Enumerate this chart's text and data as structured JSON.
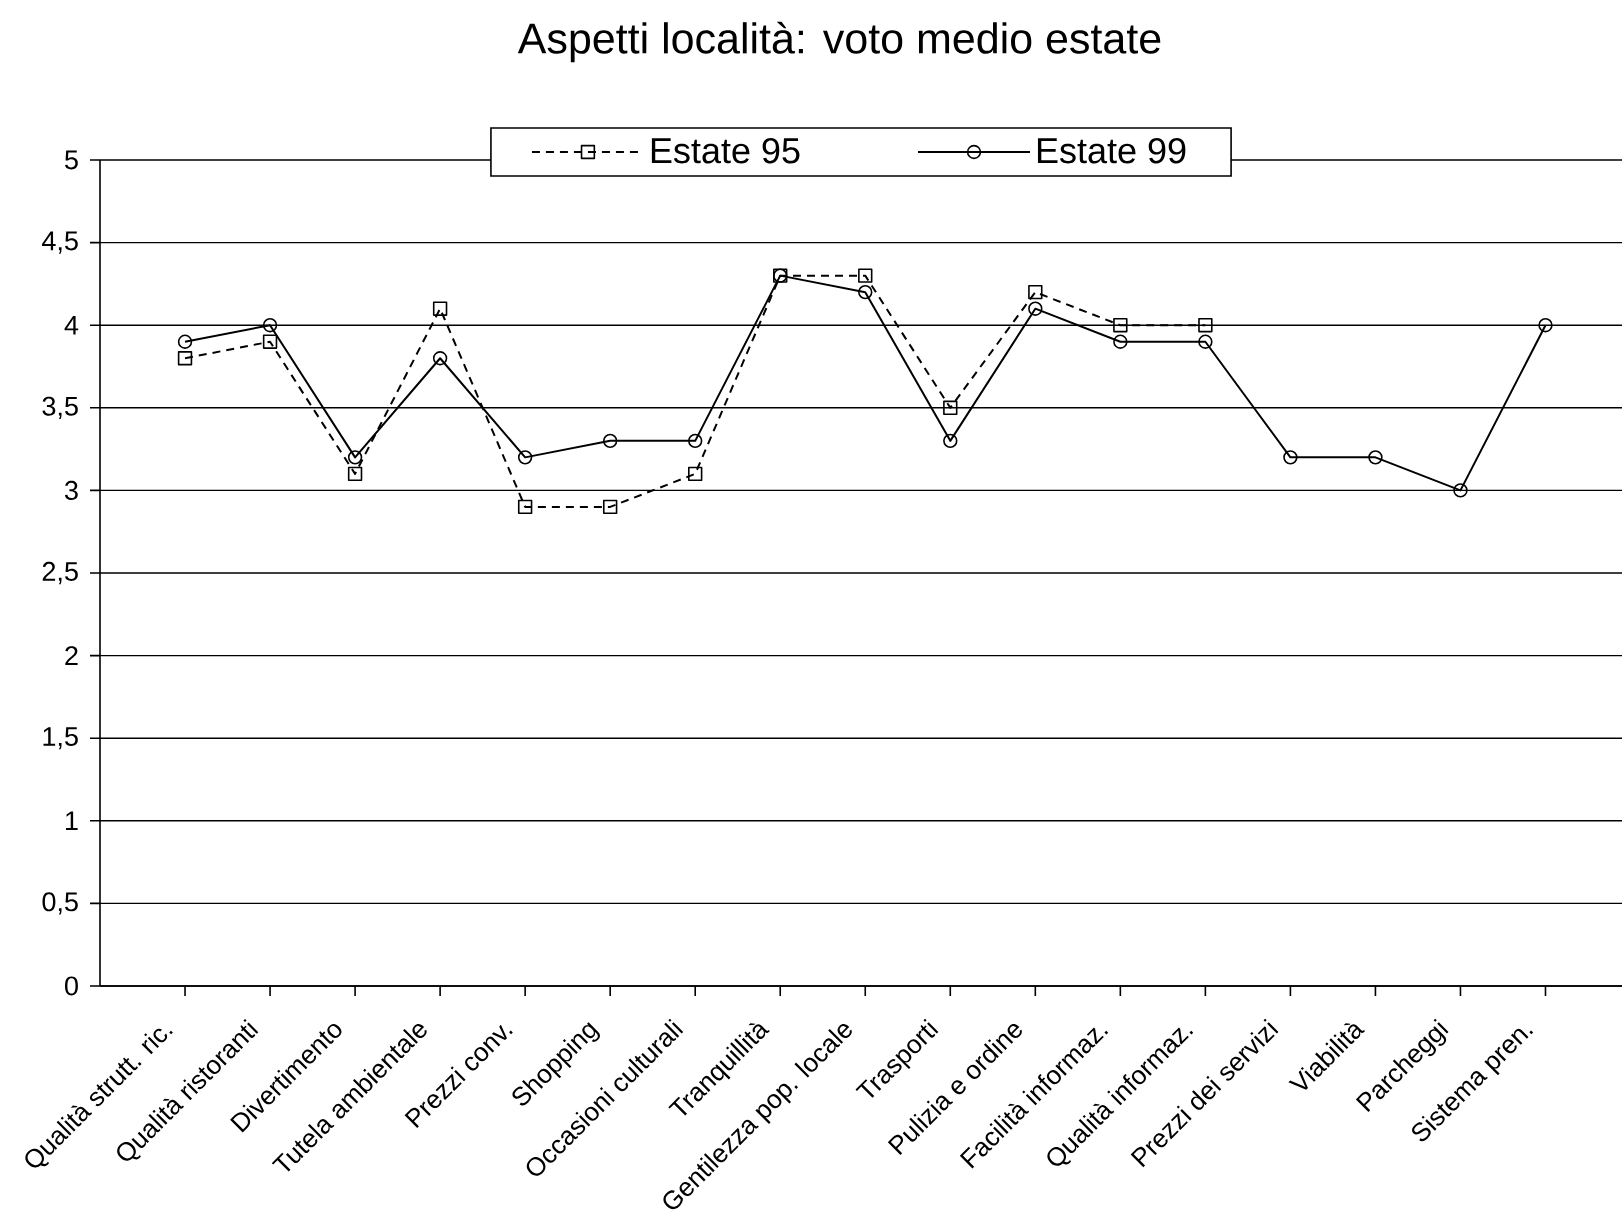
{
  "chart_data": {
    "type": "line",
    "title": "Aspetti località: voto medio estate",
    "categories": [
      "Qualità strutt. ric.",
      "Qualità ristoranti",
      "Divertimento",
      "Tutela ambientale",
      "Prezzi conv.",
      "Shopping",
      "Occasioni culturali",
      "Tranquillità",
      "Gentilezza pop. locale",
      "Trasporti",
      "Pulizia e ordine",
      "Facilità informaz.",
      "Qualità informaz.",
      "Prezzi dei servizi",
      "Viabilità",
      "Parcheggi",
      "Sistema pren."
    ],
    "series": [
      {
        "name": "Estate 95",
        "color": "#000000",
        "marker": "square",
        "line_style": "dashed",
        "values": [
          3.8,
          3.9,
          3.1,
          4.1,
          2.9,
          2.9,
          3.1,
          4.3,
          4.3,
          3.5,
          4.2,
          4.0,
          4.0,
          null,
          null,
          null,
          null
        ]
      },
      {
        "name": "Estate 99",
        "color": "#000000",
        "marker": "circle",
        "line_style": "solid",
        "values": [
          3.9,
          4.0,
          3.2,
          3.8,
          3.2,
          3.3,
          3.3,
          4.3,
          4.2,
          3.3,
          4.1,
          3.9,
          3.9,
          3.2,
          3.2,
          3.0,
          4.0
        ]
      }
    ],
    "ylim": [
      0,
      5
    ],
    "yticks": [
      0,
      {
        "value": 0.5,
        "label": "0,5"
      },
      1,
      {
        "value": 1.5,
        "label": "1,5"
      },
      2,
      {
        "value": 2.5,
        "label": "2,5"
      },
      3,
      {
        "value": 3.5,
        "label": "3,5"
      },
      4,
      {
        "value": 4.5,
        "label": "4,5"
      },
      5
    ],
    "grid": "y",
    "legend": "top"
  }
}
